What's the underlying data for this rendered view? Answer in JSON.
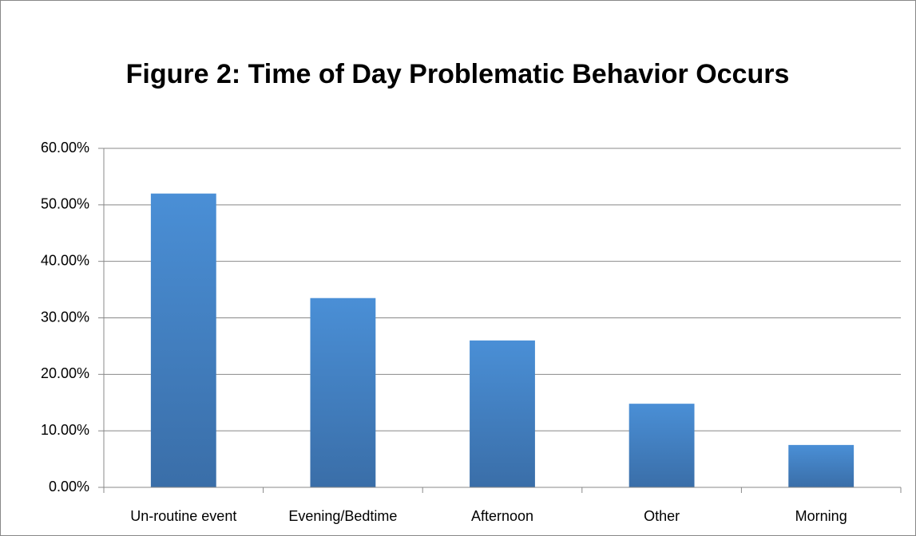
{
  "chart_data": {
    "type": "bar",
    "title": "Figure 2: Time of Day Problematic Behavior Occurs",
    "categories": [
      "Un-routine event",
      "Evening/Bedtime",
      "Afternoon",
      "Other",
      "Morning"
    ],
    "values": [
      52,
      33.5,
      26,
      14.8,
      7.5
    ],
    "color": "#4a8fd6",
    "ylim": [
      0,
      60
    ],
    "yticks": [
      {
        "value": 0,
        "label": "0.00%"
      },
      {
        "value": 10,
        "label": "10.00%"
      },
      {
        "value": 20,
        "label": "20.00%"
      },
      {
        "value": 30,
        "label": "30.00%"
      },
      {
        "value": 40,
        "label": "40.00%"
      },
      {
        "value": 50,
        "label": "50.00%"
      },
      {
        "value": 60,
        "label": "60.00%"
      }
    ],
    "grid": true
  }
}
